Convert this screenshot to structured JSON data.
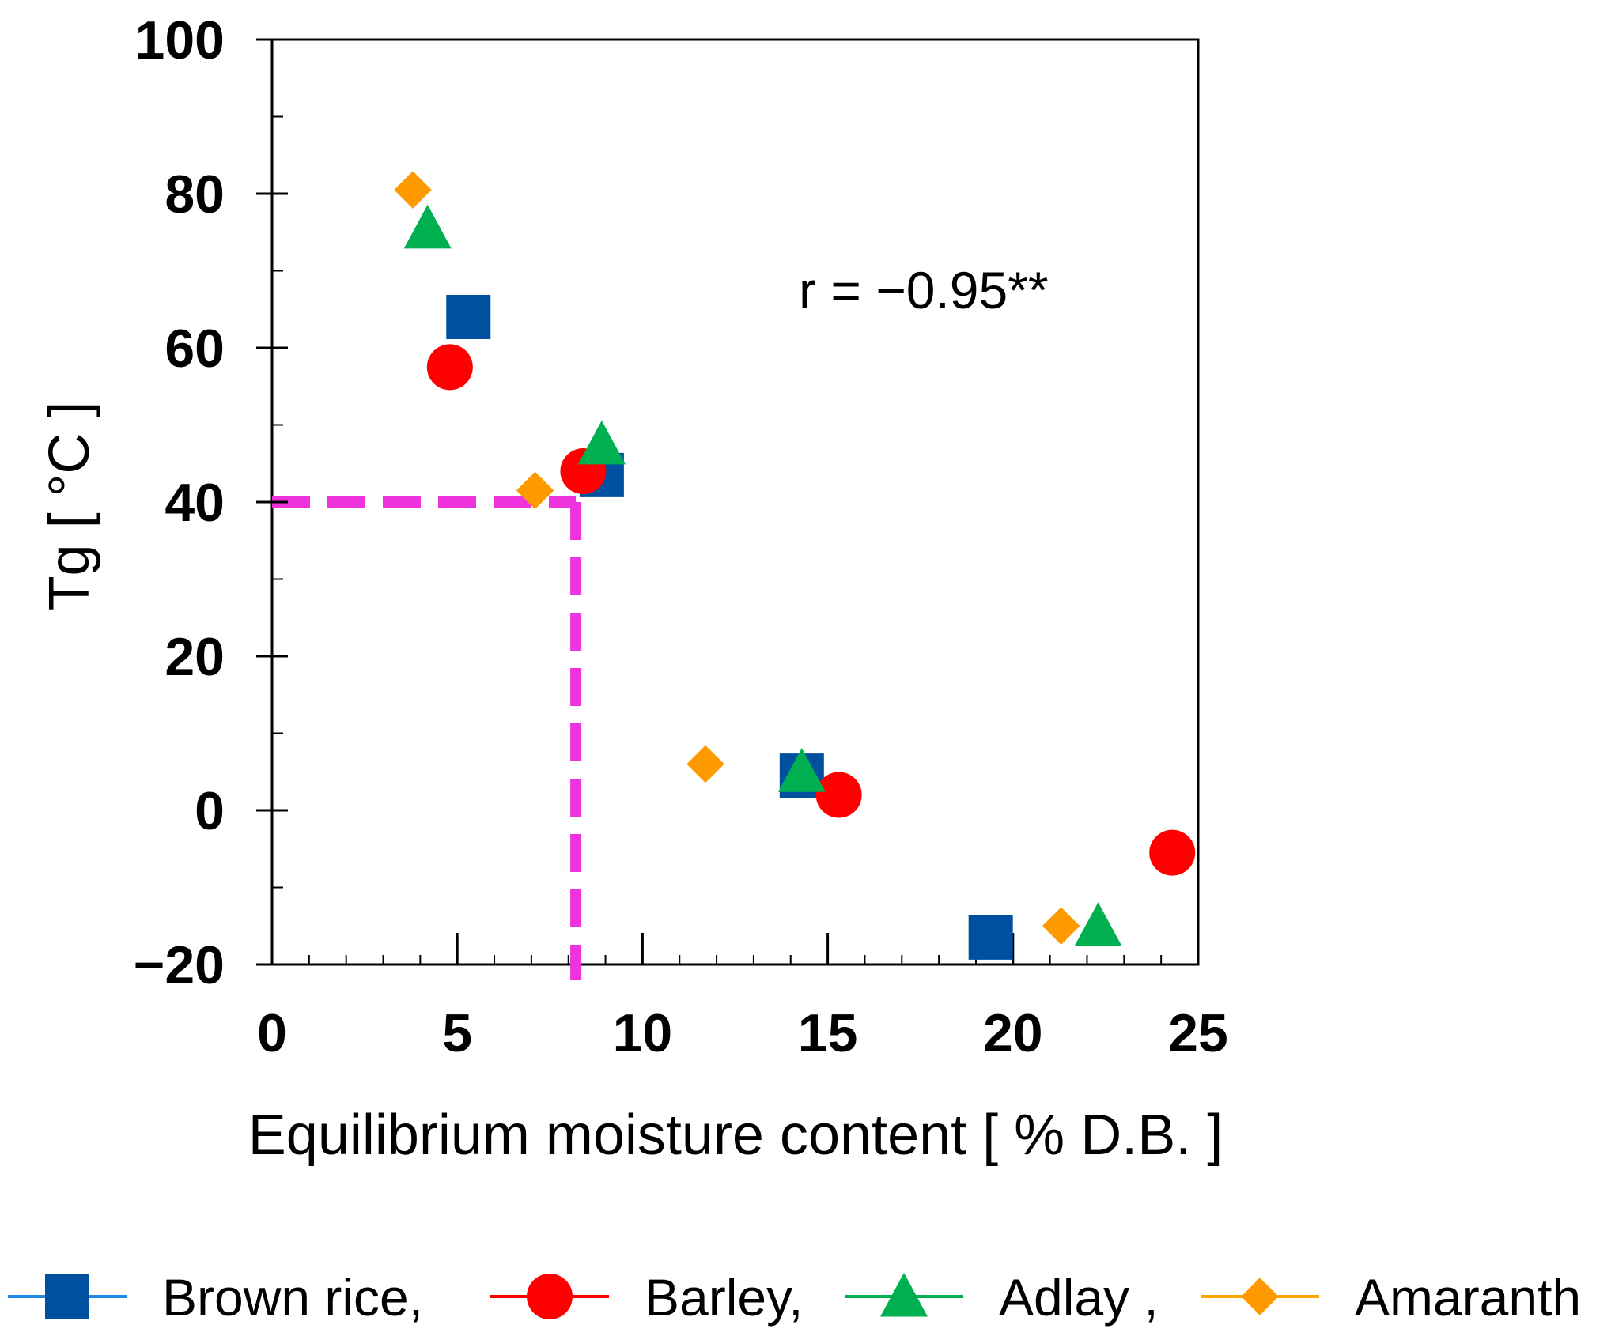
{
  "chart_data": {
    "type": "scatter",
    "title": "",
    "xlabel": "Equilibrium moisture content [ % D.B. ]",
    "ylabel": "Tg [ °C ]",
    "xlim": [
      0,
      25
    ],
    "ylim": [
      -20,
      100
    ],
    "xticks": [
      0,
      5,
      10,
      15,
      20,
      25
    ],
    "xtick_labels": [
      "0",
      "5",
      "10",
      "15",
      "20",
      "25"
    ],
    "yticks": [
      -20,
      0,
      20,
      40,
      60,
      80,
      100
    ],
    "ytick_labels": [
      "−20",
      "0",
      "20",
      "40",
      "60",
      "80",
      "100"
    ],
    "x_minor_step": 1,
    "y_minor_step": 10,
    "grid": false,
    "legend_position": "bottom",
    "annotation": "r = −0.95**",
    "reference_point": {
      "x": 8.2,
      "y": 40,
      "color": "#ee33dd"
    },
    "series": [
      {
        "name": "Brown rice,",
        "marker": "square",
        "color": "#0050a0",
        "line_color": "#1e88e5",
        "points": [
          [
            5.3,
            64
          ],
          [
            8.9,
            43.5
          ],
          [
            14.3,
            4.5
          ],
          [
            19.4,
            -16.5
          ]
        ]
      },
      {
        "name": "Barley,",
        "marker": "circle",
        "color": "#ff0000",
        "line_color": "#ff0000",
        "points": [
          [
            4.8,
            57.5
          ],
          [
            8.4,
            44
          ],
          [
            15.3,
            2
          ],
          [
            24.3,
            -5.5
          ]
        ]
      },
      {
        "name": "Adlay ,",
        "marker": "triangle",
        "color": "#00b050",
        "line_color": "#00b050",
        "points": [
          [
            4.2,
            75.5
          ],
          [
            8.9,
            47.5
          ],
          [
            14.3,
            5
          ],
          [
            22.3,
            -15
          ]
        ]
      },
      {
        "name": "Amaranth",
        "marker": "diamond",
        "color": "#ff9900",
        "line_color": "#ffa500",
        "points": [
          [
            3.8,
            80.5
          ],
          [
            7.1,
            41.5
          ],
          [
            11.7,
            6
          ],
          [
            21.3,
            -15
          ]
        ]
      }
    ]
  }
}
